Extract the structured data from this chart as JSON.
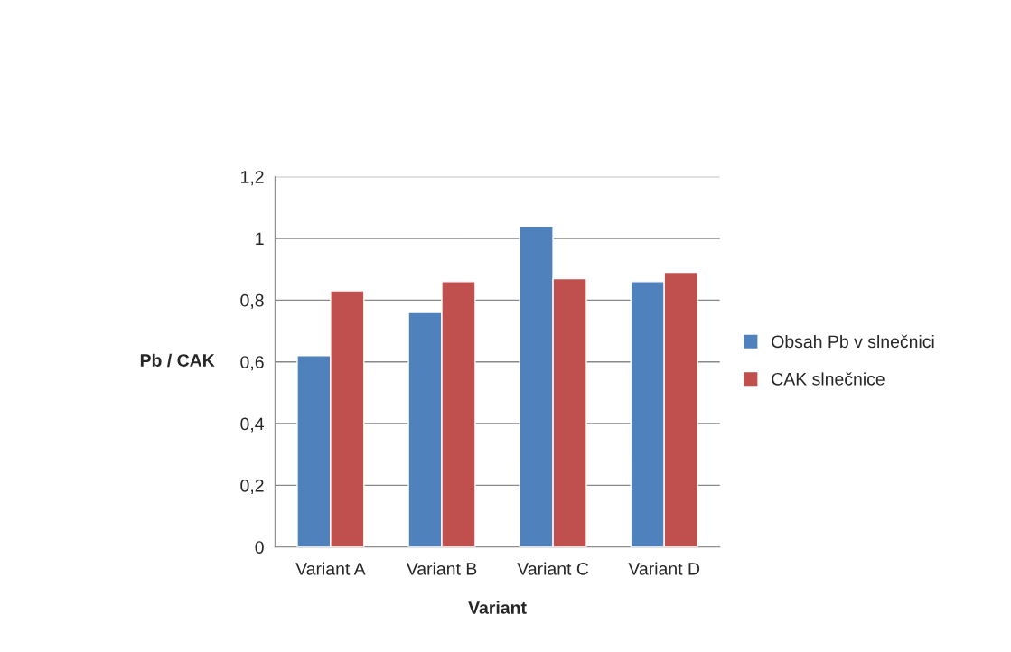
{
  "chart_data": {
    "type": "bar",
    "xlabel": "Variant",
    "ylabel": "Pb / CAK",
    "categories": [
      "Variant A",
      "Variant B",
      "Variant C",
      "Variant D"
    ],
    "series": [
      {
        "name": "Obsah Pb v slnečnici",
        "color": "#4f81bd",
        "values": [
          0.62,
          0.76,
          1.04,
          0.86
        ]
      },
      {
        "name": "CAK slnečnice",
        "color": "#c0504d",
        "values": [
          0.83,
          0.86,
          0.87,
          0.89
        ]
      }
    ],
    "ylim": [
      0,
      1.2
    ],
    "yticks": [
      0,
      {
        "value": 0.2,
        "label": "0,2"
      },
      {
        "value": 0.4,
        "label": "0,4"
      },
      {
        "value": 0.6,
        "label": "0,6"
      },
      {
        "value": 0.8,
        "label": "0,8"
      },
      1,
      {
        "value": 1.2,
        "label": "1,2"
      }
    ],
    "grid": "y",
    "legend": "right"
  }
}
